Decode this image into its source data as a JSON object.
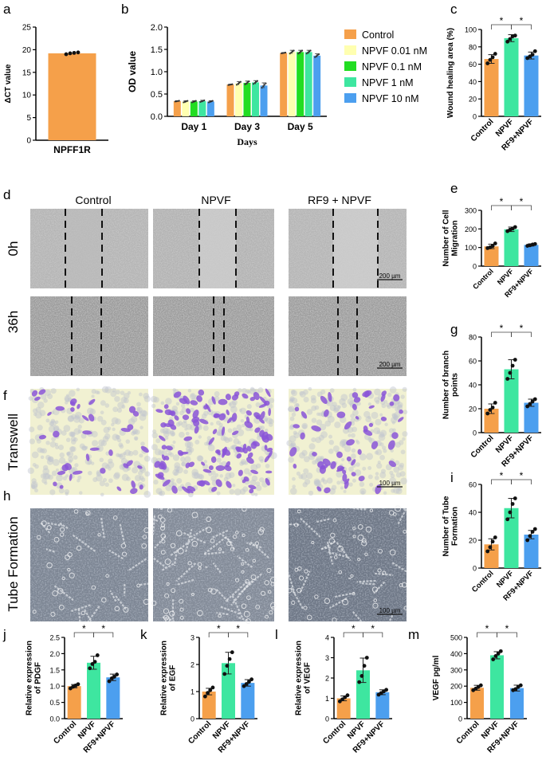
{
  "colors": {
    "control": "#F5A04A",
    "npvf001": "#FFFFB0",
    "npvf01": "#22DD22",
    "npvf1": "#3EE6A0",
    "npvf10": "#4C9FEF",
    "npvf": "#3EE6A0",
    "rf9npvf": "#4C9FEF",
    "stain": "#8A55D8",
    "dot": "#111111"
  },
  "micro": {
    "col_headers": [
      "Control",
      "NPVF",
      "RF9 + NPVF"
    ],
    "row_labels": {
      "r0h": "0h",
      "r36h": "36h",
      "transwell": "Transwell",
      "tube": "Tube Formation"
    },
    "scale_bars": {
      "r0h": "200 µm",
      "r36h": "200 µm",
      "transwell": "100 µm",
      "tube": "100 µm"
    }
  },
  "chart_data": [
    {
      "id": "a",
      "panel": "a",
      "type": "bar",
      "categories": [
        "NPFF1R"
      ],
      "values": [
        19.2
      ],
      "points": [
        [
          19.0,
          19.2,
          19.3,
          19.4
        ]
      ],
      "ylabel": "ΔCT value",
      "xlabel": "",
      "ylim": [
        0,
        25
      ],
      "yticks": [
        0,
        5,
        10,
        15,
        20,
        25
      ],
      "colors": [
        "control"
      ],
      "sig": []
    },
    {
      "id": "b",
      "panel": "b",
      "type": "bar",
      "categories": [
        "Day 1",
        "Day 3",
        "Day 5"
      ],
      "series": [
        {
          "name": "Control",
          "color": "control",
          "values": [
            0.34,
            0.71,
            1.42
          ],
          "err": [
            0.01,
            0.01,
            0.01
          ]
        },
        {
          "name": "NPVF 0.01 nM",
          "color": "npvf001",
          "values": [
            0.33,
            0.74,
            1.44
          ],
          "err": [
            0.02,
            0.04,
            0.04
          ]
        },
        {
          "name": "NPVF 0.1 nM",
          "color": "npvf01",
          "values": [
            0.33,
            0.75,
            1.44
          ],
          "err": [
            0.02,
            0.04,
            0.04
          ]
        },
        {
          "name": "NPVF 1 nM",
          "color": "npvf1",
          "values": [
            0.34,
            0.76,
            1.44
          ],
          "err": [
            0.02,
            0.04,
            0.04
          ]
        },
        {
          "name": "NPVF 10 nM",
          "color": "npvf10",
          "values": [
            0.33,
            0.69,
            1.36
          ],
          "err": [
            0.02,
            0.06,
            0.04
          ]
        }
      ],
      "ylabel": "OD value",
      "xlabel": "Days",
      "ylim": [
        0,
        2.0
      ],
      "yticks": [
        0.0,
        0.5,
        1.0,
        1.5,
        2.0
      ],
      "legend": "right"
    },
    {
      "id": "c",
      "panel": "c",
      "type": "bar",
      "categories": [
        "Control",
        "NPVF",
        "RF9+NPVF"
      ],
      "values": [
        66,
        90,
        70
      ],
      "err": [
        5,
        4,
        4
      ],
      "points": [
        [
          61,
          65,
          68,
          72
        ],
        [
          86,
          89,
          92,
          93
        ],
        [
          67,
          69,
          71,
          75
        ]
      ],
      "ylabel": "Wound healing area  (%)",
      "xlabel": "",
      "ylim": [
        0,
        100
      ],
      "yticks": [
        0,
        20,
        40,
        60,
        80,
        100
      ],
      "colors": [
        "control",
        "npvf",
        "rf9npvf"
      ],
      "sig": [
        {
          "from": 0,
          "to": 1,
          "label": "*"
        },
        {
          "from": 1,
          "to": 2,
          "label": "*"
        }
      ]
    },
    {
      "id": "e",
      "panel": "e",
      "type": "bar",
      "categories": [
        "Control",
        "NPVF",
        "RF9+NPVF"
      ],
      "values": [
        106,
        198,
        114
      ],
      "err": [
        12,
        12,
        6
      ],
      "points": [
        [
          97,
          101,
          108,
          122
        ],
        [
          188,
          196,
          202,
          210
        ],
        [
          109,
          112,
          116,
          119
        ]
      ],
      "ylabel": "Number of Cell Migration",
      "xlabel": "",
      "ylim": [
        0,
        300
      ],
      "yticks": [
        0,
        100,
        200,
        300
      ],
      "colors": [
        "control",
        "npvf",
        "rf9npvf"
      ],
      "sig": [
        {
          "from": 0,
          "to": 1,
          "label": "*"
        },
        {
          "from": 1,
          "to": 2,
          "label": "*"
        }
      ]
    },
    {
      "id": "g",
      "panel": "g",
      "type": "bar",
      "categories": [
        "Control",
        "NPVF",
        "RF9+NPVF"
      ],
      "values": [
        20,
        53,
        25
      ],
      "err": [
        4,
        8,
        3
      ],
      "points": [
        [
          16,
          19,
          21,
          25
        ],
        [
          45,
          50,
          56,
          61
        ],
        [
          22,
          24,
          26,
          28
        ]
      ],
      "ylabel": "Number of branch points",
      "xlabel": "",
      "ylim": [
        0,
        80
      ],
      "yticks": [
        0,
        20,
        40,
        60,
        80
      ],
      "colors": [
        "control",
        "npvf",
        "rf9npvf"
      ],
      "sig": [
        {
          "from": 0,
          "to": 1,
          "label": "*"
        },
        {
          "from": 1,
          "to": 2,
          "label": "*"
        }
      ]
    },
    {
      "id": "i",
      "panel": "i",
      "type": "bar",
      "categories": [
        "Control",
        "NPVF",
        "RF9+NPVF"
      ],
      "values": [
        17,
        43,
        24
      ],
      "err": [
        4,
        7,
        3
      ],
      "points": [
        [
          12,
          15,
          19,
          22
        ],
        [
          35,
          40,
          46,
          50
        ],
        [
          20,
          23,
          26,
          28
        ]
      ],
      "ylabel": "Number of Tube Formation",
      "xlabel": "",
      "ylim": [
        0,
        60
      ],
      "yticks": [
        0,
        20,
        40,
        60
      ],
      "colors": [
        "control",
        "npvf",
        "rf9npvf"
      ],
      "sig": [
        {
          "from": 0,
          "to": 1,
          "label": "*"
        },
        {
          "from": 1,
          "to": 2,
          "label": "*"
        }
      ]
    },
    {
      "id": "j",
      "panel": "j",
      "type": "bar",
      "categories": [
        "Control",
        "NPVF",
        "RF9+NPVF"
      ],
      "values": [
        1.0,
        1.72,
        1.27
      ],
      "err": [
        0.05,
        0.2,
        0.1
      ],
      "points": [
        [
          0.93,
          0.98,
          1.02,
          1.06
        ],
        [
          1.55,
          1.68,
          1.75,
          1.95
        ],
        [
          1.15,
          1.24,
          1.29,
          1.36
        ]
      ],
      "ylabel": "Relative expression of PDGF",
      "xlabel": "",
      "ylim": [
        0,
        2.5
      ],
      "yticks": [
        0.0,
        0.5,
        1.0,
        1.5,
        2.0,
        2.5
      ],
      "colors": [
        "control",
        "npvf",
        "rf9npvf"
      ],
      "sig": [
        {
          "from": 0,
          "to": 1,
          "label": "*"
        },
        {
          "from": 1,
          "to": 2,
          "label": "*"
        }
      ]
    },
    {
      "id": "k",
      "panel": "k",
      "type": "bar",
      "categories": [
        "Control",
        "NPVF",
        "RF9+NPVF"
      ],
      "values": [
        1.0,
        2.05,
        1.32
      ],
      "err": [
        0.12,
        0.4,
        0.12
      ],
      "points": [
        [
          0.82,
          0.95,
          1.05,
          1.15
        ],
        [
          1.65,
          1.95,
          2.2,
          2.45
        ],
        [
          1.2,
          1.28,
          1.36,
          1.45
        ]
      ],
      "ylabel": "Relative expression of EGF",
      "xlabel": "",
      "ylim": [
        0,
        3
      ],
      "yticks": [
        0,
        1,
        2,
        3
      ],
      "colors": [
        "control",
        "npvf",
        "rf9npvf"
      ],
      "sig": [
        {
          "from": 0,
          "to": 1,
          "label": "*"
        },
        {
          "from": 1,
          "to": 2,
          "label": "*"
        }
      ]
    },
    {
      "id": "l",
      "panel": "l",
      "type": "bar",
      "categories": [
        "Control",
        "NPVF",
        "RF9+NPVF"
      ],
      "values": [
        1.0,
        2.38,
        1.3
      ],
      "err": [
        0.12,
        0.6,
        0.12
      ],
      "points": [
        [
          0.85,
          0.95,
          1.05,
          1.15
        ],
        [
          1.8,
          2.1,
          2.6,
          3.0
        ],
        [
          1.18,
          1.26,
          1.34,
          1.42
        ]
      ],
      "ylabel": "Relative expression of VEGF",
      "xlabel": "",
      "ylim": [
        0,
        4
      ],
      "yticks": [
        0,
        1,
        2,
        3,
        4
      ],
      "colors": [
        "control",
        "npvf",
        "rf9npvf"
      ],
      "sig": [
        {
          "from": 0,
          "to": 1,
          "label": "*"
        },
        {
          "from": 1,
          "to": 2,
          "label": "*"
        }
      ]
    },
    {
      "id": "m",
      "panel": "m",
      "type": "bar",
      "categories": [
        "Control",
        "NPVF",
        "RF9+NPVF"
      ],
      "values": [
        190,
        390,
        188
      ],
      "err": [
        15,
        22,
        18
      ],
      "points": [
        [
          175,
          185,
          195,
          205
        ],
        [
          365,
          385,
          400,
          415
        ],
        [
          175,
          182,
          195,
          205
        ]
      ],
      "ylabel": "VEGF pg/ml",
      "xlabel": "",
      "ylim": [
        0,
        500
      ],
      "yticks": [
        0,
        100,
        200,
        300,
        400,
        500
      ],
      "colors": [
        "control",
        "npvf",
        "rf9npvf"
      ],
      "sig": [
        {
          "from": 0,
          "to": 1,
          "label": "*"
        },
        {
          "from": 1,
          "to": 2,
          "label": "*"
        }
      ]
    }
  ]
}
